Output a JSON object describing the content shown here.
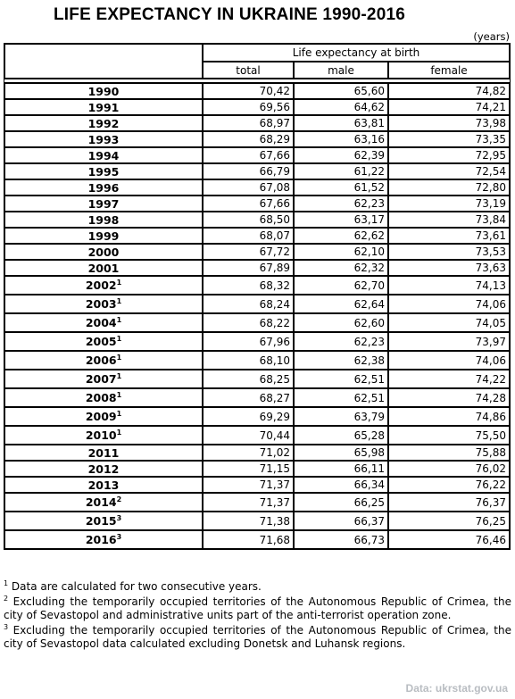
{
  "title": "LIFE EXPECTANCY IN UKRAINE 1990-2016",
  "units": "(years)",
  "table": {
    "group_header": "Life expectancy at birth",
    "columns": [
      "total",
      "male",
      "female"
    ],
    "rows": [
      {
        "year": "1990",
        "sup": "",
        "total": "70,42",
        "male": "65,60",
        "female": "74,82"
      },
      {
        "year": "1991",
        "sup": "",
        "total": "69,56",
        "male": "64,62",
        "female": "74,21"
      },
      {
        "year": "1992",
        "sup": "",
        "total": "68,97",
        "male": "63,81",
        "female": "73,98"
      },
      {
        "year": "1993",
        "sup": "",
        "total": "68,29",
        "male": "63,16",
        "female": "73,35"
      },
      {
        "year": "1994",
        "sup": "",
        "total": "67,66",
        "male": "62,39",
        "female": "72,95"
      },
      {
        "year": "1995",
        "sup": "",
        "total": "66,79",
        "male": "61,22",
        "female": "72,54"
      },
      {
        "year": "1996",
        "sup": "",
        "total": "67,08",
        "male": "61,52",
        "female": "72,80"
      },
      {
        "year": "1997",
        "sup": "",
        "total": "67,66",
        "male": "62,23",
        "female": "73,19"
      },
      {
        "year": "1998",
        "sup": "",
        "total": "68,50",
        "male": "63,17",
        "female": "73,84"
      },
      {
        "year": "1999",
        "sup": "",
        "total": "68,07",
        "male": "62,62",
        "female": "73,61"
      },
      {
        "year": "2000",
        "sup": "",
        "total": "67,72",
        "male": "62,10",
        "female": "73,53"
      },
      {
        "year": "2001",
        "sup": "",
        "total": "67,89",
        "male": "62,32",
        "female": "73,63"
      },
      {
        "year": "2002",
        "sup": "1",
        "total": "68,32",
        "male": "62,70",
        "female": "74,13"
      },
      {
        "year": "2003",
        "sup": "1",
        "total": "68,24",
        "male": "62,64",
        "female": "74,06"
      },
      {
        "year": "2004",
        "sup": "1",
        "total": "68,22",
        "male": "62,60",
        "female": "74,05"
      },
      {
        "year": "2005",
        "sup": "1",
        "total": "67,96",
        "male": "62,23",
        "female": "73,97"
      },
      {
        "year": "2006",
        "sup": "1",
        "total": "68,10",
        "male": "62,38",
        "female": "74,06"
      },
      {
        "year": "2007",
        "sup": "1",
        "total": "68,25",
        "male": "62,51",
        "female": "74,22"
      },
      {
        "year": "2008",
        "sup": "1",
        "total": "68,27",
        "male": "62,51",
        "female": "74,28"
      },
      {
        "year": "2009",
        "sup": "1",
        "total": "69,29",
        "male": "63,79",
        "female": "74,86"
      },
      {
        "year": "2010",
        "sup": "1",
        "total": "70,44",
        "male": "65,28",
        "female": "75,50"
      },
      {
        "year": "2011",
        "sup": "",
        "total": "71,02",
        "male": "65,98",
        "female": "75,88"
      },
      {
        "year": "2012",
        "sup": "",
        "total": "71,15",
        "male": "66,11",
        "female": "76,02"
      },
      {
        "year": "2013",
        "sup": "",
        "total": "71,37",
        "male": "66,34",
        "female": "76,22"
      },
      {
        "year": "2014",
        "sup": "2",
        "total": "71,37",
        "male": "66,25",
        "female": "76,37"
      },
      {
        "year": "2015",
        "sup": "3",
        "total": "71,38",
        "male": "66,37",
        "female": "76,25"
      },
      {
        "year": "2016",
        "sup": "3",
        "total": "71,68",
        "male": "66,73",
        "female": "76,46"
      }
    ]
  },
  "footnotes": [
    {
      "mark": "1",
      "text": "Data are calculated for two consecutive years."
    },
    {
      "mark": "2",
      "text": "Excluding the temporarily occupied territories of the Autonomous Republic of Crimea, the city of Sevastopol and administrative units part of  the anti-terrorist operation zone."
    },
    {
      "mark": "3",
      "text": "Excluding the temporarily occupied territories of the Autonomous Republic of Crimea, the city of Sevastopol data calculated excluding Donetsk and Luhansk regions."
    }
  ],
  "source": "Data: ukrstat.gov.ua"
}
